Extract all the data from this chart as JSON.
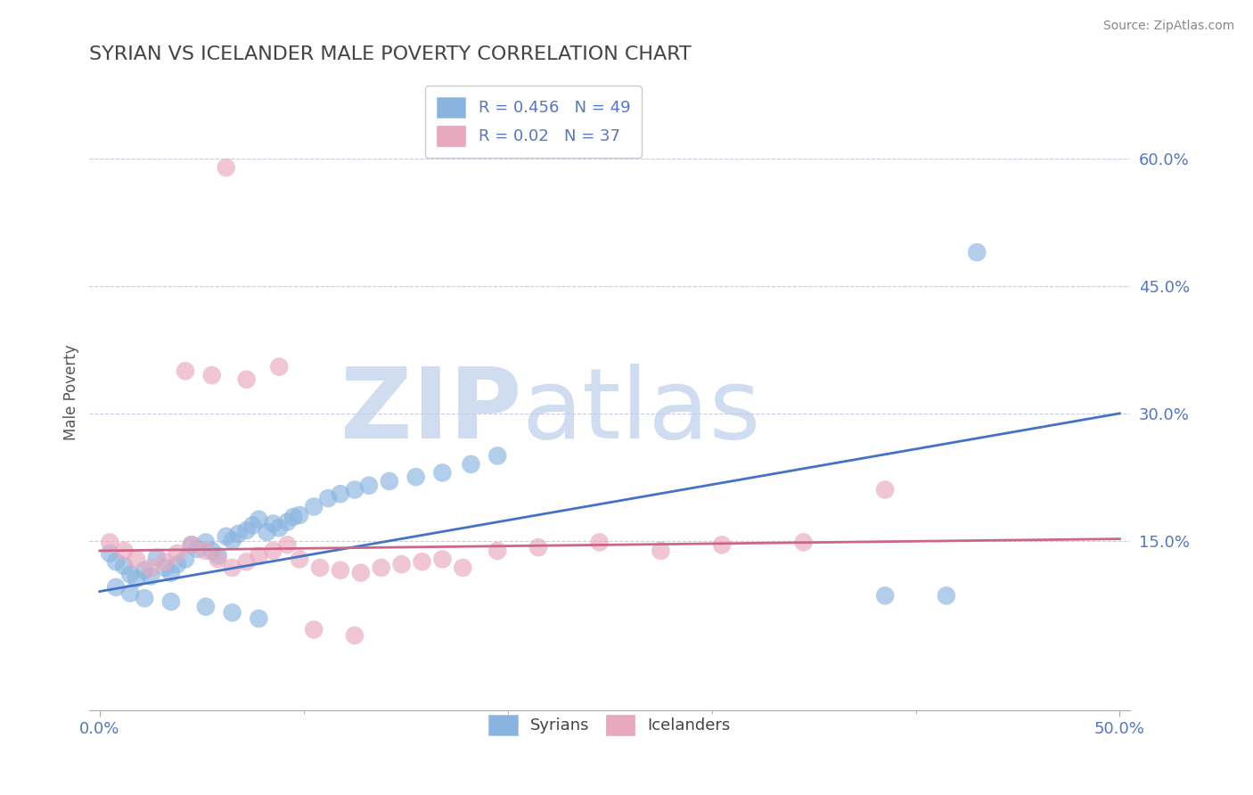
{
  "title": "SYRIAN VS ICELANDER MALE POVERTY CORRELATION CHART",
  "source": "Source: ZipAtlas.com",
  "ylabel": "Male Poverty",
  "xlim": [
    -0.005,
    0.505
  ],
  "ylim": [
    -0.05,
    0.7
  ],
  "ytick_values": [
    0.6,
    0.45,
    0.3,
    0.15
  ],
  "ytick_labels": [
    "60.0%",
    "45.0%",
    "30.0%",
    "15.0%"
  ],
  "xtick_major": [
    0.0,
    0.5
  ],
  "xtick_major_labels": [
    "0.0%",
    "50.0%"
  ],
  "xtick_minor": [
    0.1,
    0.2,
    0.3,
    0.4
  ],
  "grid_color": "#c8cce0",
  "background_color": "#ffffff",
  "syrian_color": "#8ab4e0",
  "icelander_color": "#e8a8be",
  "syrian_line_color": "#4472c4",
  "icelander_line_color": "#cc6688",
  "watermark_color": "#d0ddf0",
  "label_color": "#5577bb",
  "title_color": "#444444",
  "tick_color": "#5577bb",
  "spine_color": "#cccccc",
  "R_syrian": 0.456,
  "N_syrian": 49,
  "R_icelander": 0.02,
  "N_icelander": 37,
  "syrians_x": [
    0.005,
    0.008,
    0.012,
    0.015,
    0.018,
    0.022,
    0.025,
    0.028,
    0.032,
    0.035,
    0.038,
    0.042,
    0.045,
    0.048,
    0.052,
    0.055,
    0.058,
    0.062,
    0.065,
    0.068,
    0.072,
    0.075,
    0.078,
    0.082,
    0.085,
    0.088,
    0.092,
    0.095,
    0.098,
    0.105,
    0.112,
    0.118,
    0.125,
    0.132,
    0.142,
    0.155,
    0.168,
    0.182,
    0.195,
    0.008,
    0.015,
    0.022,
    0.035,
    0.052,
    0.065,
    0.078,
    0.385,
    0.415,
    0.43
  ],
  "syrians_y": [
    0.135,
    0.125,
    0.12,
    0.11,
    0.105,
    0.115,
    0.108,
    0.13,
    0.118,
    0.112,
    0.122,
    0.128,
    0.145,
    0.14,
    0.148,
    0.138,
    0.132,
    0.155,
    0.15,
    0.158,
    0.162,
    0.168,
    0.175,
    0.16,
    0.17,
    0.165,
    0.172,
    0.178,
    0.18,
    0.19,
    0.2,
    0.205,
    0.21,
    0.215,
    0.22,
    0.225,
    0.23,
    0.24,
    0.25,
    0.095,
    0.088,
    0.082,
    0.078,
    0.072,
    0.065,
    0.058,
    0.085,
    0.085,
    0.49
  ],
  "icelanders_x": [
    0.005,
    0.012,
    0.018,
    0.025,
    0.032,
    0.038,
    0.045,
    0.052,
    0.058,
    0.065,
    0.072,
    0.078,
    0.085,
    0.092,
    0.098,
    0.108,
    0.118,
    0.128,
    0.138,
    0.148,
    0.158,
    0.168,
    0.178,
    0.195,
    0.215,
    0.245,
    0.275,
    0.305,
    0.345,
    0.385,
    0.042,
    0.055,
    0.072,
    0.088,
    0.105,
    0.125,
    0.062
  ],
  "icelanders_y": [
    0.148,
    0.138,
    0.128,
    0.118,
    0.125,
    0.135,
    0.145,
    0.138,
    0.128,
    0.118,
    0.125,
    0.132,
    0.138,
    0.145,
    0.128,
    0.118,
    0.115,
    0.112,
    0.118,
    0.122,
    0.125,
    0.128,
    0.118,
    0.138,
    0.142,
    0.148,
    0.138,
    0.145,
    0.148,
    0.21,
    0.35,
    0.345,
    0.34,
    0.355,
    0.045,
    0.038,
    0.59
  ],
  "syr_line_x": [
    0.0,
    0.5
  ],
  "syr_line_y": [
    0.09,
    0.3
  ],
  "ice_line_x": [
    0.0,
    0.5
  ],
  "ice_line_y": [
    0.138,
    0.152
  ]
}
